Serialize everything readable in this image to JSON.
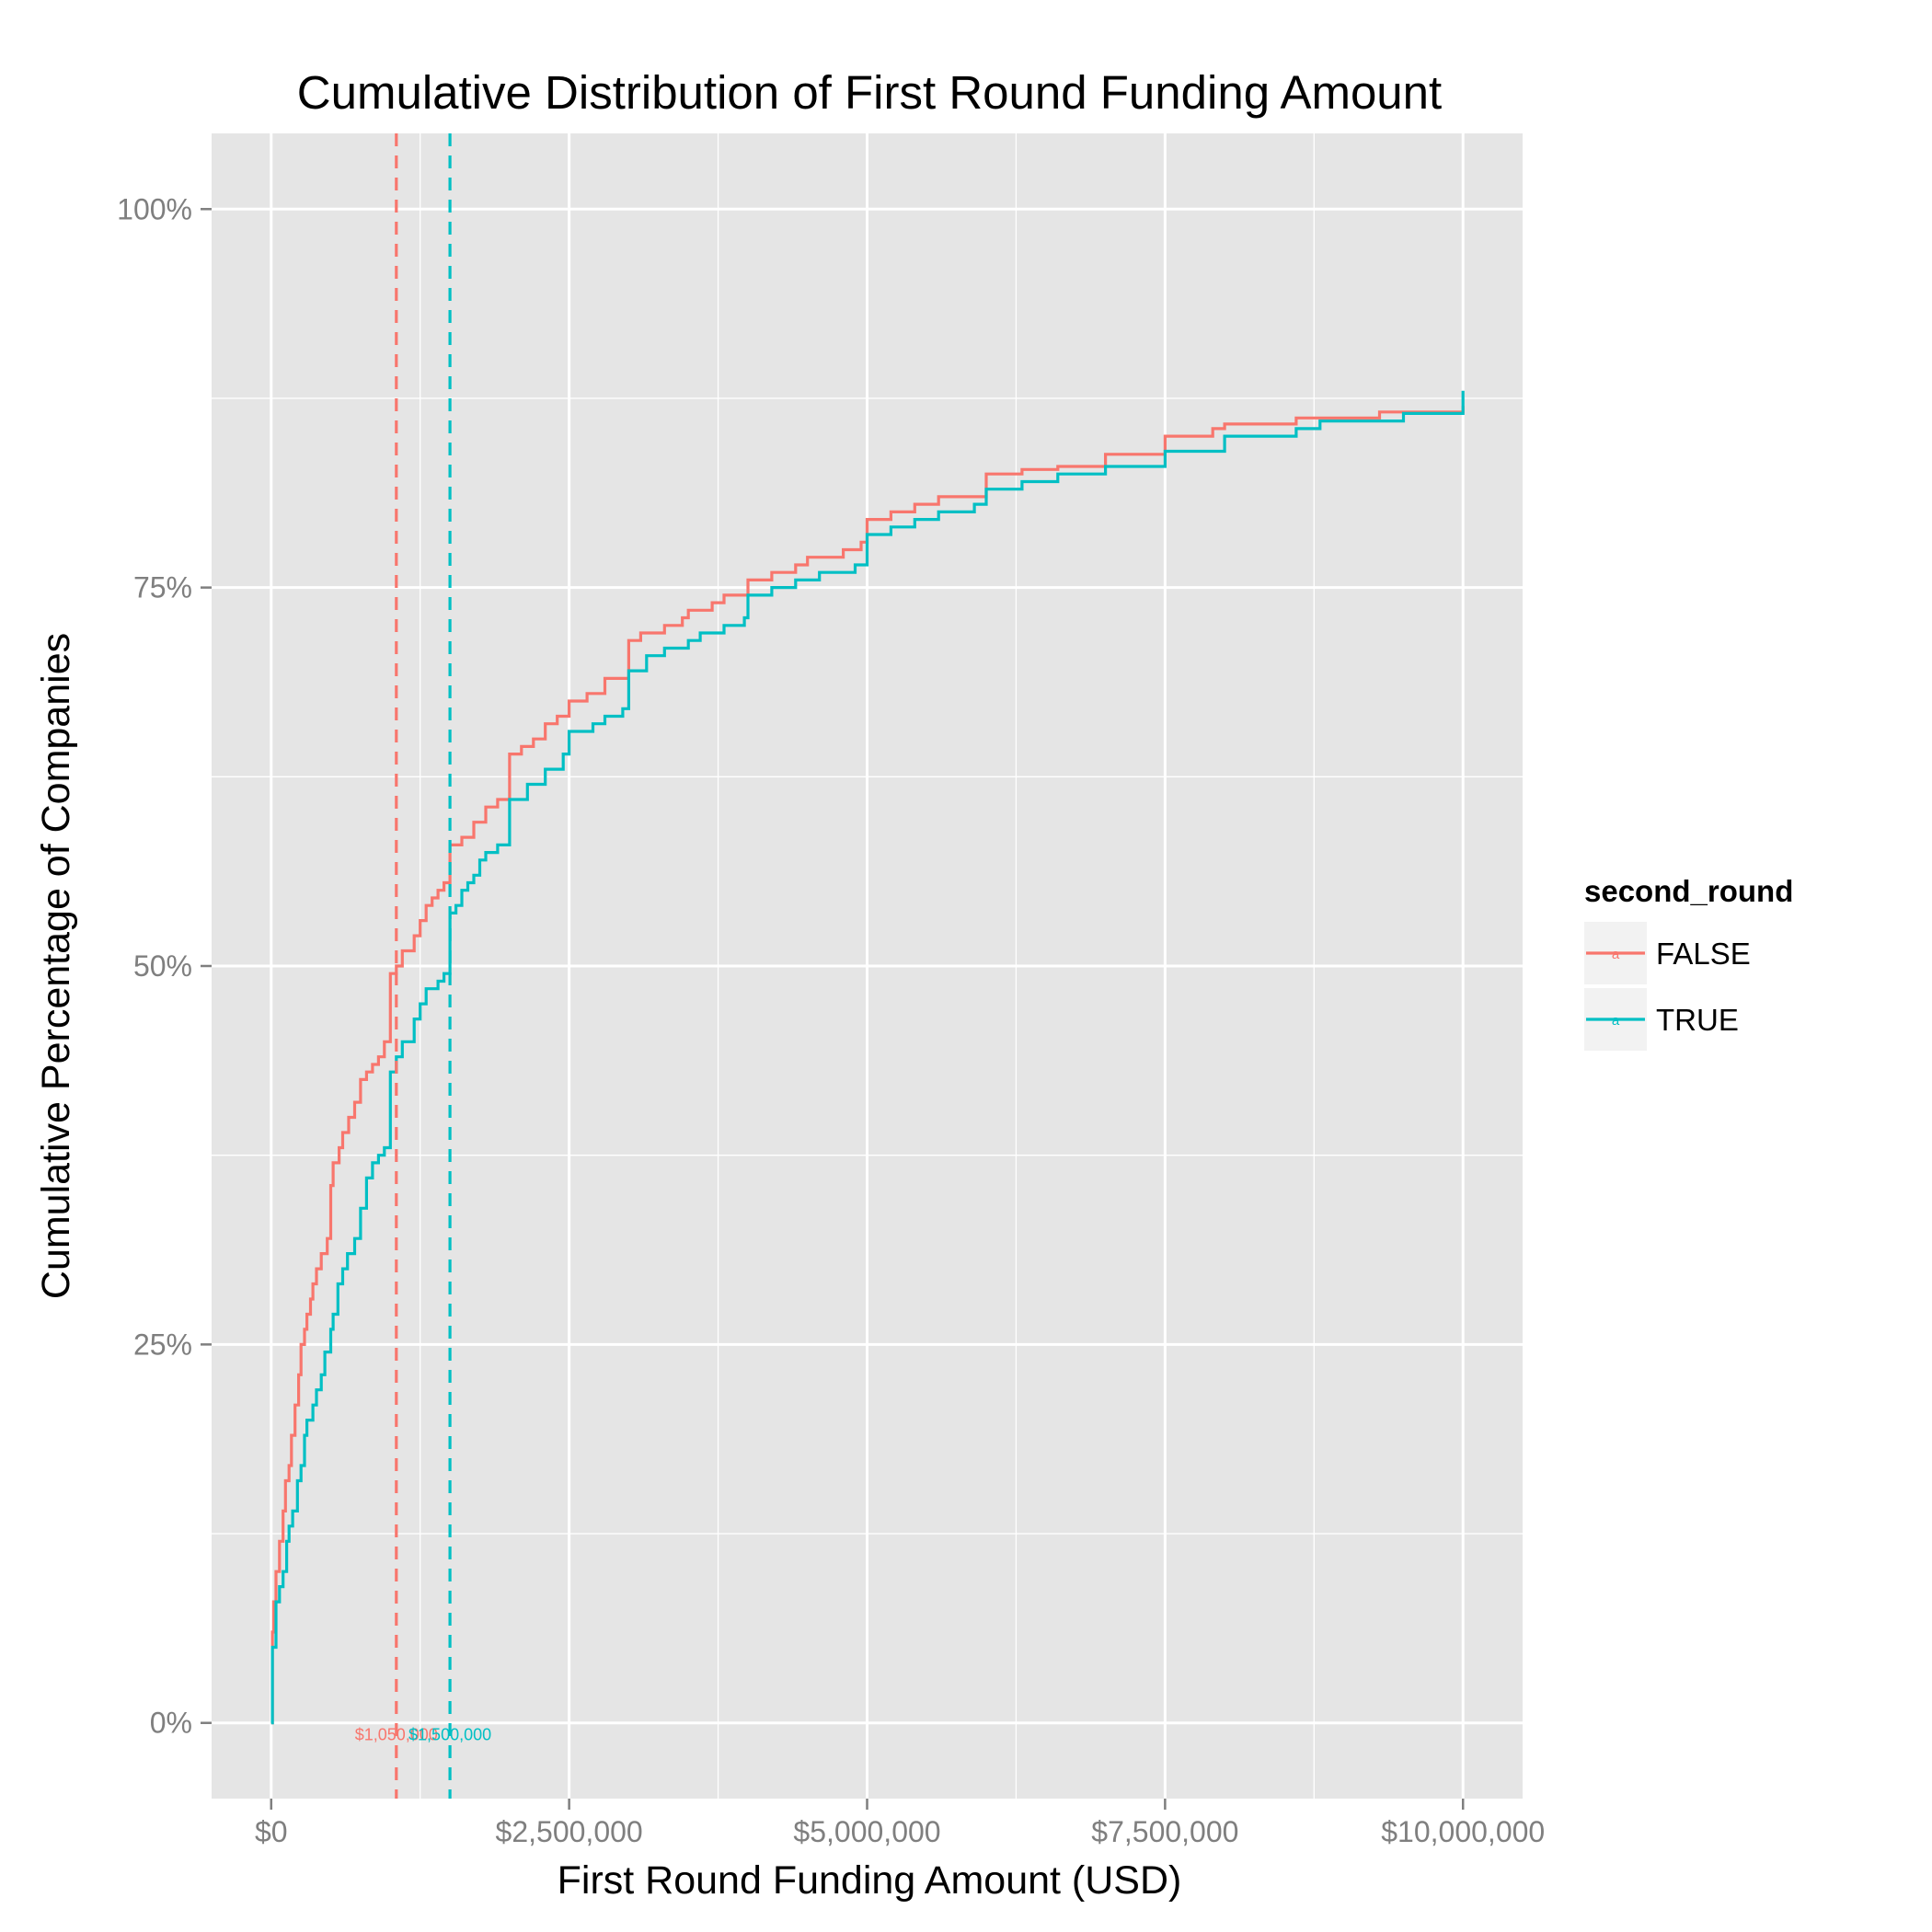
{
  "chart_data": {
    "type": "line",
    "title": "Cumulative Distribution of First Round Funding Amount",
    "xlabel": "First Round Funding Amount (USD)",
    "ylabel": "Cumulative Percentage of Companies",
    "xlim": [
      -500000,
      10500000
    ],
    "ylim": [
      -0.05,
      1.05
    ],
    "x_ticks": [
      0,
      2500000,
      5000000,
      7500000,
      10000000
    ],
    "x_tick_labels": [
      "$0",
      "$2,500,000",
      "$5,000,000",
      "$7,500,000",
      "$10,000,000"
    ],
    "y_ticks": [
      0,
      0.25,
      0.5,
      0.75,
      1.0
    ],
    "y_tick_labels": [
      "0%",
      "25%",
      "50%",
      "75%",
      "100%"
    ],
    "grid": true,
    "legend": {
      "title": "second_round",
      "placement": "right",
      "key_glyph": "a"
    },
    "colors": {
      "FALSE": "#f8766d",
      "TRUE": "#00bfc4",
      "panel": "#e5e5e5",
      "grid": "#ffffff"
    },
    "series": [
      {
        "name": "FALSE",
        "color": "#f8766d",
        "points": [
          [
            0,
            0
          ],
          [
            10000,
            0.06
          ],
          [
            20000,
            0.08
          ],
          [
            40000,
            0.1
          ],
          [
            70000,
            0.12
          ],
          [
            100000,
            0.14
          ],
          [
            120000,
            0.16
          ],
          [
            150000,
            0.17
          ],
          [
            170000,
            0.19
          ],
          [
            200000,
            0.21
          ],
          [
            230000,
            0.23
          ],
          [
            250000,
            0.25
          ],
          [
            280000,
            0.26
          ],
          [
            300000,
            0.27
          ],
          [
            330000,
            0.28
          ],
          [
            350000,
            0.29
          ],
          [
            380000,
            0.3
          ],
          [
            420000,
            0.31
          ],
          [
            470000,
            0.32
          ],
          [
            500000,
            0.355
          ],
          [
            520000,
            0.37
          ],
          [
            570000,
            0.38
          ],
          [
            600000,
            0.39
          ],
          [
            650000,
            0.4
          ],
          [
            700000,
            0.41
          ],
          [
            750000,
            0.425
          ],
          [
            800000,
            0.43
          ],
          [
            850000,
            0.435
          ],
          [
            900000,
            0.44
          ],
          [
            950000,
            0.45
          ],
          [
            1000000,
            0.495
          ],
          [
            1050000,
            0.5
          ],
          [
            1100000,
            0.51
          ],
          [
            1200000,
            0.52
          ],
          [
            1250000,
            0.53
          ],
          [
            1300000,
            0.54
          ],
          [
            1350000,
            0.545
          ],
          [
            1400000,
            0.55
          ],
          [
            1450000,
            0.555
          ],
          [
            1500000,
            0.58
          ],
          [
            1600000,
            0.585
          ],
          [
            1700000,
            0.595
          ],
          [
            1800000,
            0.605
          ],
          [
            1900000,
            0.61
          ],
          [
            2000000,
            0.64
          ],
          [
            2100000,
            0.645
          ],
          [
            2200000,
            0.65
          ],
          [
            2300000,
            0.66
          ],
          [
            2400000,
            0.665
          ],
          [
            2500000,
            0.675
          ],
          [
            2650000,
            0.68
          ],
          [
            2800000,
            0.69
          ],
          [
            2950000,
            0.69
          ],
          [
            3000000,
            0.715
          ],
          [
            3100000,
            0.72
          ],
          [
            3300000,
            0.725
          ],
          [
            3450000,
            0.73
          ],
          [
            3500000,
            0.735
          ],
          [
            3700000,
            0.74
          ],
          [
            3800000,
            0.745
          ],
          [
            4000000,
            0.755
          ],
          [
            4200000,
            0.76
          ],
          [
            4400000,
            0.765
          ],
          [
            4500000,
            0.77
          ],
          [
            4800000,
            0.775
          ],
          [
            4950000,
            0.78
          ],
          [
            5000000,
            0.795
          ],
          [
            5200000,
            0.8
          ],
          [
            5400000,
            0.805
          ],
          [
            5600000,
            0.81
          ],
          [
            6000000,
            0.825
          ],
          [
            6300000,
            0.828
          ],
          [
            6600000,
            0.83
          ],
          [
            7000000,
            0.838
          ],
          [
            7500000,
            0.85
          ],
          [
            7900000,
            0.855
          ],
          [
            8000000,
            0.858
          ],
          [
            8600000,
            0.862
          ],
          [
            9300000,
            0.866
          ],
          [
            10000000,
            0.87
          ]
        ]
      },
      {
        "name": "TRUE",
        "color": "#00bfc4",
        "points": [
          [
            0,
            0
          ],
          [
            10000,
            0.05
          ],
          [
            40000,
            0.08
          ],
          [
            70000,
            0.09
          ],
          [
            100000,
            0.1
          ],
          [
            130000,
            0.12
          ],
          [
            150000,
            0.13
          ],
          [
            180000,
            0.14
          ],
          [
            220000,
            0.16
          ],
          [
            250000,
            0.17
          ],
          [
            280000,
            0.19
          ],
          [
            300000,
            0.2
          ],
          [
            350000,
            0.21
          ],
          [
            380000,
            0.22
          ],
          [
            420000,
            0.23
          ],
          [
            450000,
            0.245
          ],
          [
            500000,
            0.26
          ],
          [
            520000,
            0.27
          ],
          [
            560000,
            0.29
          ],
          [
            600000,
            0.3
          ],
          [
            640000,
            0.31
          ],
          [
            700000,
            0.32
          ],
          [
            750000,
            0.34
          ],
          [
            800000,
            0.36
          ],
          [
            850000,
            0.37
          ],
          [
            900000,
            0.375
          ],
          [
            950000,
            0.38
          ],
          [
            1000000,
            0.43
          ],
          [
            1050000,
            0.44
          ],
          [
            1100000,
            0.45
          ],
          [
            1200000,
            0.465
          ],
          [
            1250000,
            0.475
          ],
          [
            1300000,
            0.485
          ],
          [
            1400000,
            0.49
          ],
          [
            1450000,
            0.495
          ],
          [
            1500000,
            0.535
          ],
          [
            1550000,
            0.54
          ],
          [
            1600000,
            0.55
          ],
          [
            1650000,
            0.555
          ],
          [
            1700000,
            0.56
          ],
          [
            1750000,
            0.57
          ],
          [
            1800000,
            0.575
          ],
          [
            1900000,
            0.58
          ],
          [
            1980000,
            0.58
          ],
          [
            2000000,
            0.61
          ],
          [
            2150000,
            0.62
          ],
          [
            2300000,
            0.63
          ],
          [
            2450000,
            0.64
          ],
          [
            2500000,
            0.655
          ],
          [
            2700000,
            0.66
          ],
          [
            2800000,
            0.665
          ],
          [
            2950000,
            0.67
          ],
          [
            3000000,
            0.695
          ],
          [
            3150000,
            0.705
          ],
          [
            3300000,
            0.71
          ],
          [
            3500000,
            0.715
          ],
          [
            3600000,
            0.72
          ],
          [
            3800000,
            0.725
          ],
          [
            3970000,
            0.73
          ],
          [
            4000000,
            0.745
          ],
          [
            4200000,
            0.75
          ],
          [
            4400000,
            0.755
          ],
          [
            4600000,
            0.76
          ],
          [
            4900000,
            0.765
          ],
          [
            5000000,
            0.785
          ],
          [
            5200000,
            0.79
          ],
          [
            5400000,
            0.795
          ],
          [
            5600000,
            0.8
          ],
          [
            5900000,
            0.805
          ],
          [
            6000000,
            0.815
          ],
          [
            6300000,
            0.82
          ],
          [
            6600000,
            0.825
          ],
          [
            7000000,
            0.83
          ],
          [
            7500000,
            0.84
          ],
          [
            8000000,
            0.85
          ],
          [
            8600000,
            0.855
          ],
          [
            8800000,
            0.86
          ],
          [
            9500000,
            0.865
          ],
          [
            10000000,
            0.88
          ]
        ]
      }
    ],
    "vlines": [
      {
        "series": "FALSE",
        "x": 1050000,
        "label": "$1,050,000",
        "color": "#f8766d"
      },
      {
        "series": "TRUE",
        "x": 1500000,
        "label": "$1,500,000",
        "color": "#00bfc4"
      }
    ]
  }
}
